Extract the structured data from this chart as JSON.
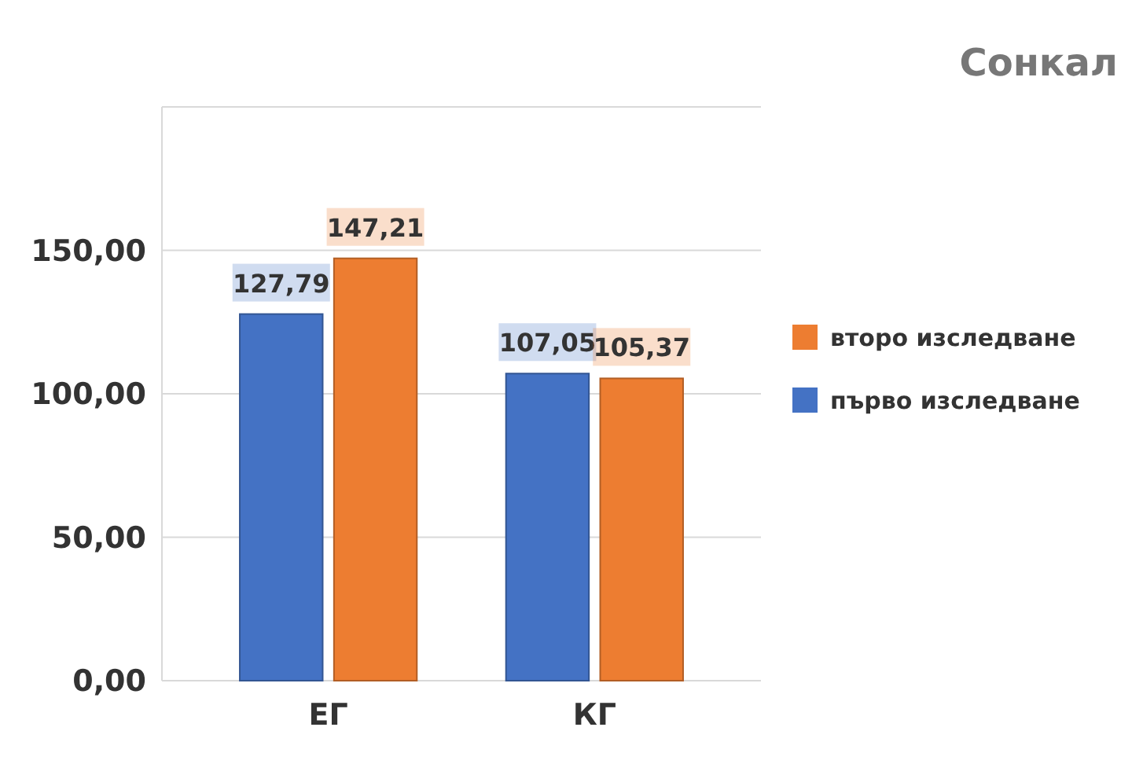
{
  "chart_data": {
    "type": "bar",
    "title": "Сонкал",
    "categories": [
      "ЕГ",
      "КГ"
    ],
    "series": [
      {
        "name": "първо изследване",
        "color": "#4472c4",
        "values": [
          127.79,
          107.05
        ],
        "value_labels": [
          "127,79",
          "107,05"
        ]
      },
      {
        "name": "второ изследване",
        "color": "#ed7d31",
        "values": [
          147.21,
          105.37
        ],
        "value_labels": [
          "147,21",
          "105,37"
        ]
      }
    ],
    "ylim": [
      0,
      200
    ],
    "yticks": [
      {
        "value": 0,
        "label": "0,00"
      },
      {
        "value": 50,
        "label": "50,00"
      },
      {
        "value": 100,
        "label": "100,00"
      },
      {
        "value": 150,
        "label": "150,00"
      },
      {
        "value": 200,
        "label": null
      }
    ],
    "grid": "y",
    "legend": "right"
  }
}
